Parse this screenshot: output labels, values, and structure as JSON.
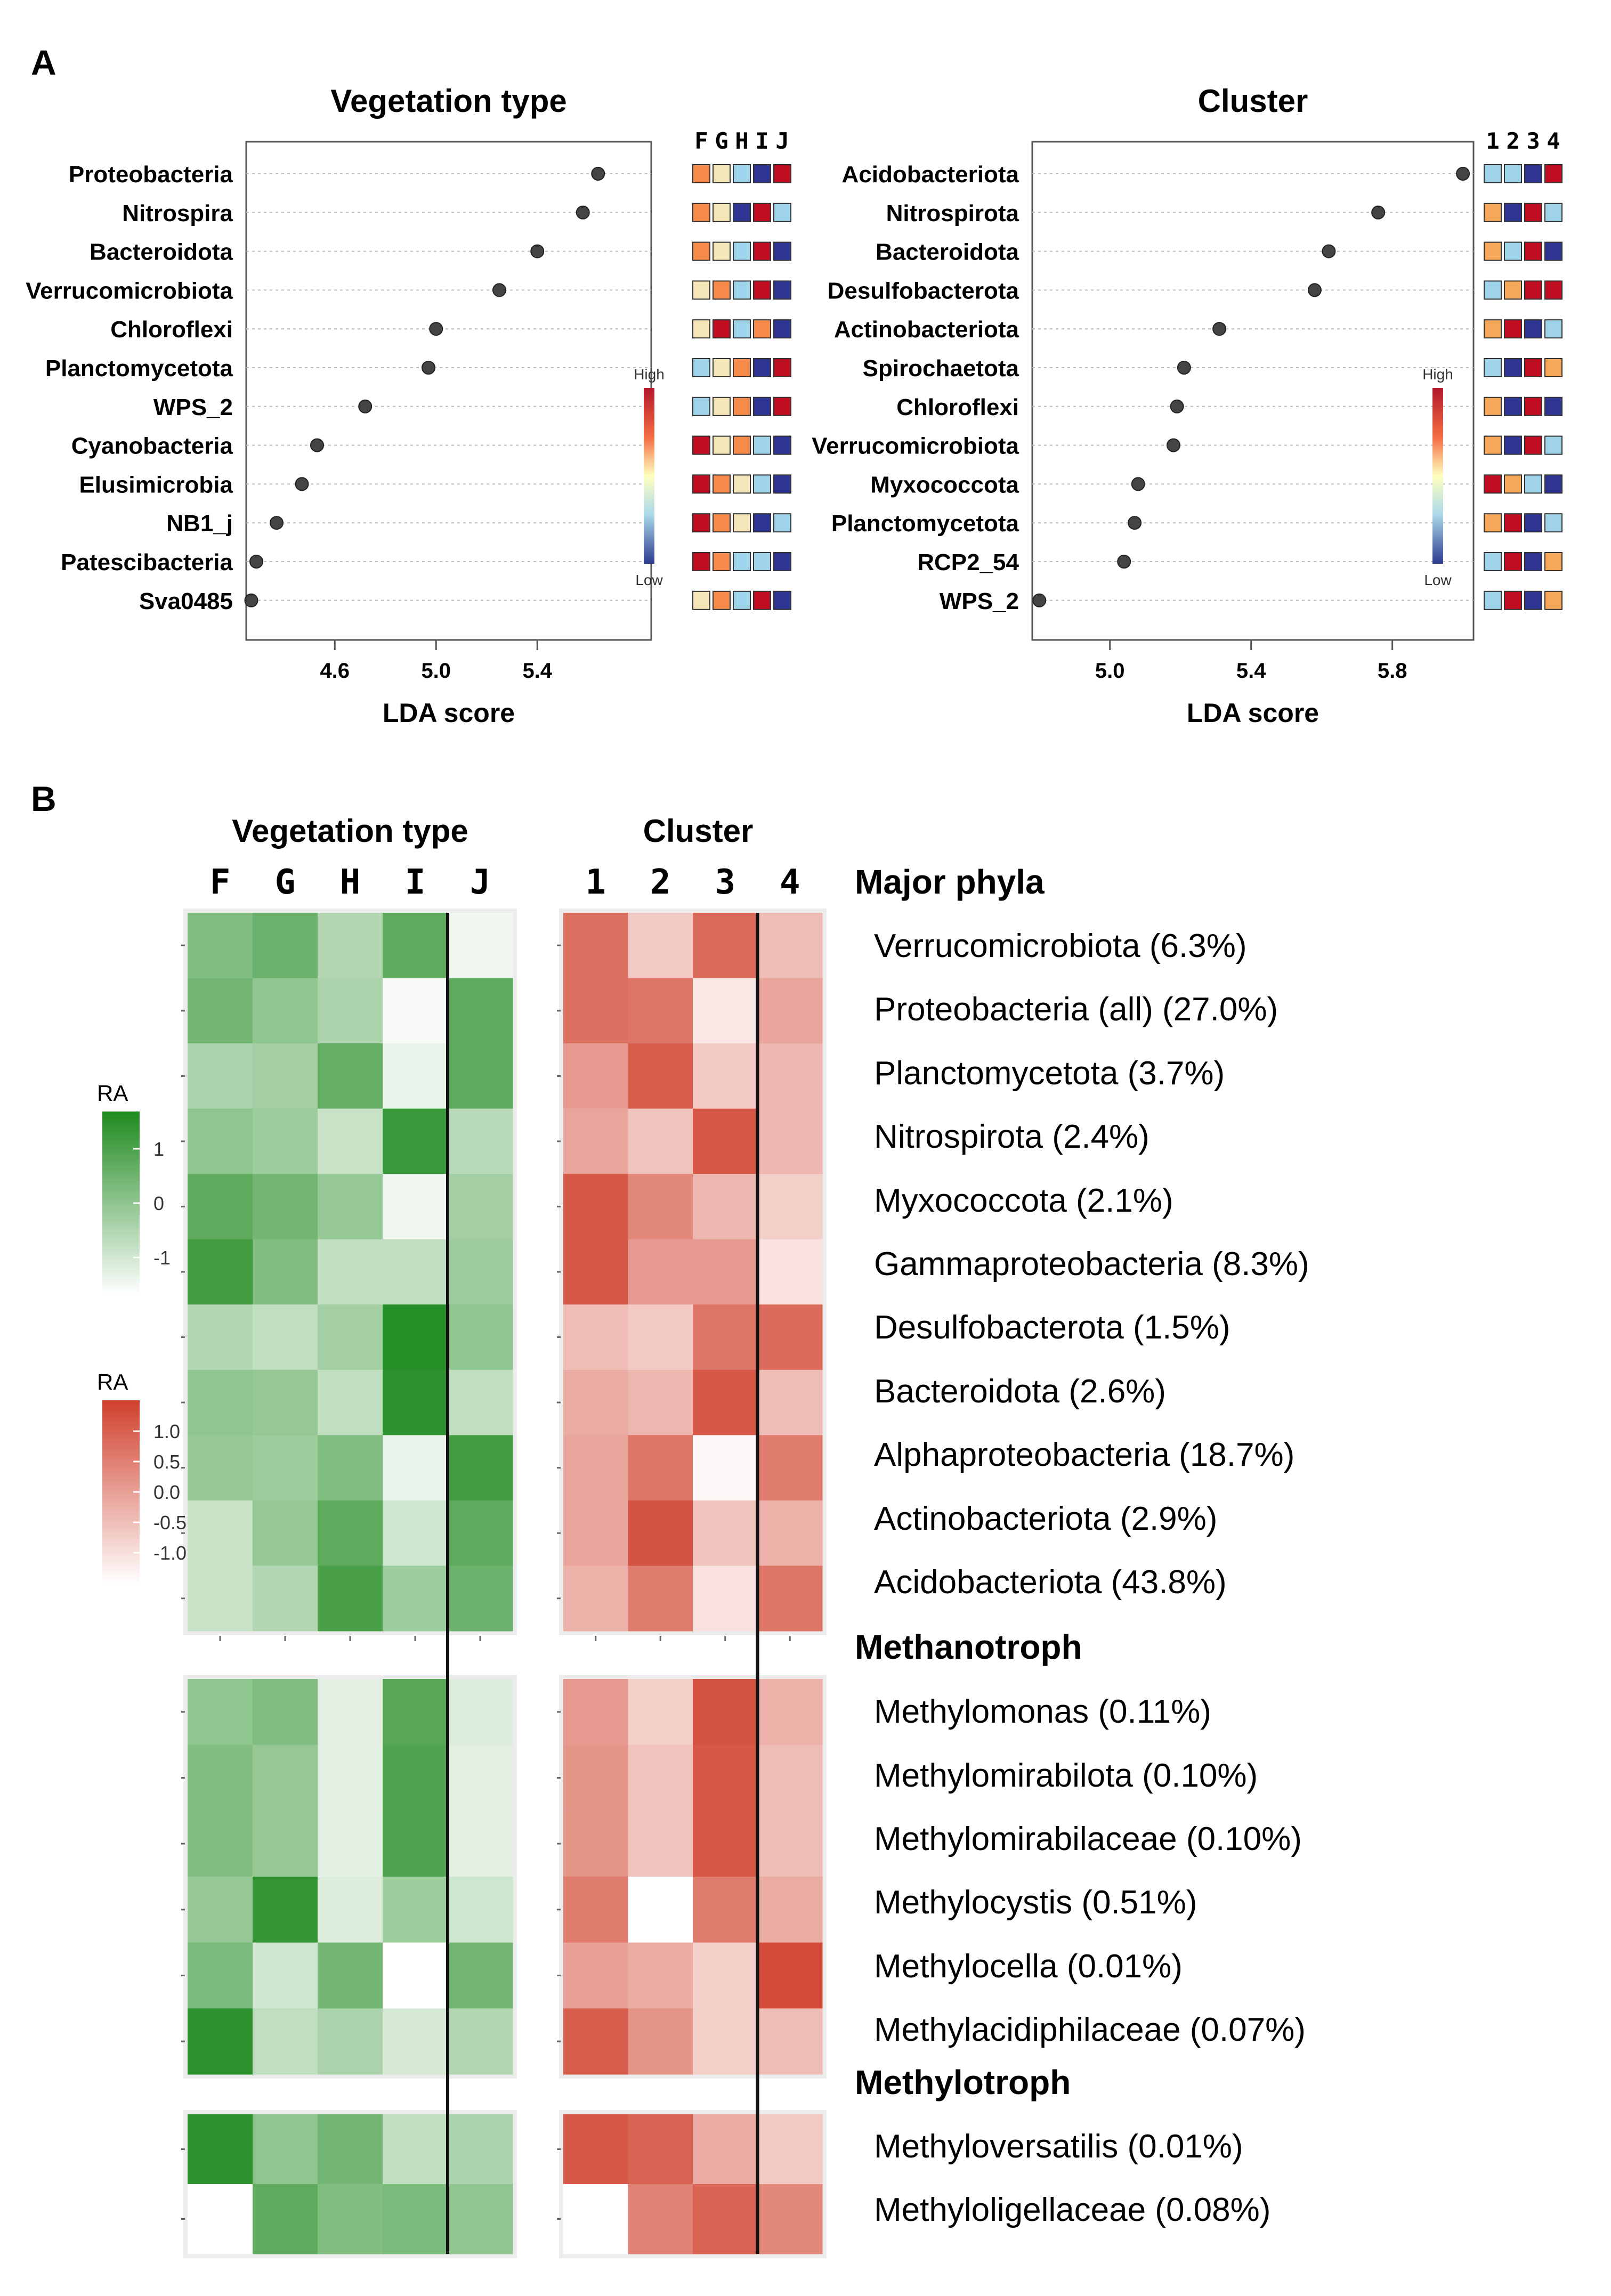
{
  "panels": {
    "a": "A",
    "b": "B"
  },
  "lda_labels": {
    "high": "High",
    "low": "Low",
    "xlabel": "LDA score"
  },
  "chart_data": [
    {
      "id": "lda_vegetation",
      "type": "scatter",
      "title": "Vegetation type",
      "xlabel": "LDA score",
      "xlim": [
        4.25,
        5.85
      ],
      "xticks": [
        4.6,
        5.0,
        5.4
      ],
      "xticklabels": [
        "4.6",
        "5.0",
        "5.4"
      ],
      "group_labels": [
        "F",
        "G",
        "H",
        "I",
        "J"
      ],
      "items": [
        {
          "label": "Proteobacteria",
          "value": 5.64,
          "colors": [
            "#f58a4a",
            "#f5e6ba",
            "#9fd3ea",
            "#2e3592",
            "#c10d22"
          ]
        },
        {
          "label": "Nitrospira",
          "value": 5.58,
          "colors": [
            "#f58a4a",
            "#f5e6ba",
            "#2e3592",
            "#c10d22",
            "#9fd3ea"
          ]
        },
        {
          "label": "Bacteroidota",
          "value": 5.4,
          "colors": [
            "#f58a4a",
            "#f5e6ba",
            "#9fd3ea",
            "#c10d22",
            "#2e3592"
          ]
        },
        {
          "label": "Verrucomicrobiota",
          "value": 5.25,
          "colors": [
            "#f5e6ba",
            "#f58a4a",
            "#9fd3ea",
            "#c10d22",
            "#2e3592"
          ]
        },
        {
          "label": "Chloroflexi",
          "value": 5.0,
          "colors": [
            "#f5e6ba",
            "#c10d22",
            "#9fd3ea",
            "#f58a4a",
            "#2e3592"
          ]
        },
        {
          "label": "Planctomycetota",
          "value": 4.97,
          "colors": [
            "#9fd3ea",
            "#f5e6ba",
            "#f58a4a",
            "#2e3592",
            "#c10d22"
          ]
        },
        {
          "label": "WPS_2",
          "value": 4.72,
          "colors": [
            "#9fd3ea",
            "#f5e6ba",
            "#f58a4a",
            "#2e3592",
            "#c10d22"
          ]
        },
        {
          "label": "Cyanobacteria",
          "value": 4.53,
          "colors": [
            "#c10d22",
            "#f5e6ba",
            "#f58a4a",
            "#9fd3ea",
            "#2e3592"
          ]
        },
        {
          "label": "Elusimicrobia",
          "value": 4.47,
          "colors": [
            "#c10d22",
            "#f58a4a",
            "#f5e6ba",
            "#9fd3ea",
            "#2e3592"
          ]
        },
        {
          "label": "NB1_j",
          "value": 4.37,
          "colors": [
            "#c10d22",
            "#f58a4a",
            "#f5e6ba",
            "#2e3592",
            "#9fd3ea"
          ]
        },
        {
          "label": "Patescibacteria",
          "value": 4.29,
          "colors": [
            "#c10d22",
            "#f58a4a",
            "#9fd3ea",
            "#9fd3ea",
            "#2e3592"
          ]
        },
        {
          "label": "Sva0485",
          "value": 4.27,
          "colors": [
            "#f5e6ba",
            "#f58a4a",
            "#9fd3ea",
            "#c10d22",
            "#2e3592"
          ]
        }
      ]
    },
    {
      "id": "lda_cluster",
      "type": "scatter",
      "title": "Cluster",
      "xlabel": "LDA score",
      "xlim": [
        4.78,
        6.03
      ],
      "xticks": [
        5.0,
        5.4,
        5.8
      ],
      "xticklabels": [
        "5.0",
        "5.4",
        "5.8"
      ],
      "group_labels": [
        "1",
        "2",
        "3",
        "4"
      ],
      "items": [
        {
          "label": "Acidobacteriota",
          "value": 6.0,
          "colors": [
            "#9fd3ea",
            "#9fd3ea",
            "#2e3592",
            "#c10d22"
          ]
        },
        {
          "label": "Nitrospirota",
          "value": 5.76,
          "colors": [
            "#f5a85a",
            "#2e3592",
            "#c10d22",
            "#9fd3ea"
          ]
        },
        {
          "label": "Bacteroidota",
          "value": 5.62,
          "colors": [
            "#f5a85a",
            "#9fd3ea",
            "#c10d22",
            "#2e3592"
          ]
        },
        {
          "label": "Desulfobacterota",
          "value": 5.58,
          "colors": [
            "#9fd3ea",
            "#f5a85a",
            "#c10d22",
            "#c10d22"
          ]
        },
        {
          "label": "Actinobacteriota",
          "value": 5.31,
          "colors": [
            "#f5a85a",
            "#c10d22",
            "#2e3592",
            "#9fd3ea"
          ]
        },
        {
          "label": "Spirochaetota",
          "value": 5.21,
          "colors": [
            "#9fd3ea",
            "#2e3592",
            "#c10d22",
            "#f5a85a"
          ]
        },
        {
          "label": "Chloroflexi",
          "value": 5.19,
          "colors": [
            "#f5a85a",
            "#2e3592",
            "#c10d22",
            "#2e3592"
          ]
        },
        {
          "label": "Verrucomicrobiota",
          "value": 5.18,
          "colors": [
            "#f5a85a",
            "#2e3592",
            "#c10d22",
            "#9fd3ea"
          ]
        },
        {
          "label": "Myxococcota",
          "value": 5.08,
          "colors": [
            "#c10d22",
            "#f5a85a",
            "#9fd3ea",
            "#2e3592"
          ]
        },
        {
          "label": "Planctomycetota",
          "value": 5.07,
          "colors": [
            "#f5a85a",
            "#c10d22",
            "#2e3592",
            "#9fd3ea"
          ]
        },
        {
          "label": "RCP2_54",
          "value": 5.04,
          "colors": [
            "#9fd3ea",
            "#c10d22",
            "#2e3592",
            "#f5a85a"
          ]
        },
        {
          "label": "WPS_2",
          "value": 4.8,
          "colors": [
            "#9fd3ea",
            "#c10d22",
            "#2e3592",
            "#f5a85a"
          ]
        }
      ]
    },
    {
      "id": "heatmap_vegetation",
      "type": "heatmap",
      "title": "Vegetation type",
      "columns": [
        "F",
        "G",
        "H",
        "I",
        "J"
      ],
      "legend": {
        "title": "RA",
        "ticks": [
          "1",
          "0",
          "-1"
        ],
        "tick_values": [
          1,
          0,
          -1
        ]
      },
      "blocks": [
        {
          "rows": [
            [
              0.1,
              0.4,
              -0.6,
              0.6,
              -1.5
            ],
            [
              0.3,
              -0.1,
              -0.5,
              -1.6,
              0.6
            ],
            [
              -0.5,
              -0.4,
              0.5,
              -1.4,
              0.6
            ],
            [
              -0.1,
              -0.3,
              -0.9,
              1.1,
              -0.7
            ],
            [
              0.6,
              0.3,
              -0.2,
              -1.5,
              -0.4
            ],
            [
              1.0,
              0.1,
              -0.8,
              -0.8,
              -0.3
            ],
            [
              -0.6,
              -0.8,
              -0.4,
              1.4,
              -0.1
            ],
            [
              -0.1,
              -0.2,
              -0.8,
              1.3,
              -0.8
            ],
            [
              -0.2,
              -0.3,
              0.1,
              -1.4,
              1.0
            ],
            [
              -0.9,
              -0.2,
              0.6,
              -1.0,
              0.6
            ],
            [
              -0.9,
              -0.6,
              0.9,
              -0.3,
              0.4
            ]
          ]
        },
        {
          "rows": [
            [
              -0.1,
              0.1,
              -1.3,
              0.7,
              -1.2
            ],
            [
              0.1,
              -0.2,
              -1.3,
              0.8,
              -1.3
            ],
            [
              0.1,
              -0.2,
              -1.3,
              0.8,
              -1.3
            ],
            [
              -0.2,
              1.2,
              -1.2,
              -0.3,
              -1.0
            ],
            [
              0.2,
              -1.0,
              0.3,
              -1.7,
              0.3
            ],
            [
              1.3,
              -0.8,
              -0.5,
              -1.1,
              -0.6
            ]
          ]
        },
        {
          "rows": [
            [
              1.3,
              -0.1,
              0.3,
              -0.8,
              -0.5
            ],
            [
              -1.7,
              0.6,
              0.1,
              0.2,
              -0.1
            ]
          ]
        }
      ]
    },
    {
      "id": "heatmap_cluster",
      "type": "heatmap",
      "title": "Cluster",
      "columns": [
        "1",
        "2",
        "3",
        "4"
      ],
      "legend": {
        "title": "RA",
        "ticks": [
          "1.0",
          "0.5",
          "0.0",
          "-0.5",
          "-1.0"
        ],
        "tick_values": [
          1.0,
          0.5,
          0.0,
          -0.5,
          -1.0
        ]
      },
      "blocks": [
        {
          "rows": [
            [
              0.7,
              -0.8,
              0.8,
              -0.6
            ],
            [
              0.7,
              0.6,
              -1.3,
              -0.2
            ],
            [
              0.0,
              1.0,
              -0.8,
              -0.5
            ],
            [
              -0.2,
              -0.7,
              1.1,
              -0.5
            ],
            [
              1.1,
              0.3,
              -0.5,
              -0.9
            ],
            [
              1.1,
              0.0,
              0.0,
              -1.2
            ],
            [
              -0.6,
              -0.8,
              0.6,
              0.8
            ],
            [
              -0.3,
              -0.5,
              1.1,
              -0.6
            ],
            [
              -0.2,
              0.6,
              -1.6,
              0.5
            ],
            [
              -0.2,
              1.2,
              -0.7,
              -0.4
            ],
            [
              -0.4,
              0.5,
              -1.2,
              0.6
            ]
          ]
        },
        {
          "rows": [
            [
              0.0,
              -0.9,
              1.2,
              -0.4
            ],
            [
              0.1,
              -0.7,
              1.1,
              -0.6
            ],
            [
              0.1,
              -0.7,
              1.1,
              -0.6
            ],
            [
              0.5,
              -1.7,
              0.5,
              -0.3
            ],
            [
              -0.1,
              -0.3,
              -0.9,
              1.3
            ],
            [
              1.0,
              0.1,
              -0.9,
              -0.6
            ]
          ]
        },
        {
          "rows": [
            [
              1.1,
              0.9,
              -0.3,
              -0.8
            ],
            [
              -1.7,
              0.4,
              0.9,
              0.3
            ]
          ]
        }
      ]
    }
  ],
  "heatmap_labels": {
    "groups": [
      {
        "header": "Major phyla",
        "rows": [
          "Verrucomicrobiota (6.3%)",
          "Proteobacteria (all) (27.0%)",
          "Planctomycetota (3.7%)",
          "Nitrospirota (2.4%)",
          "Myxococcota (2.1%)",
          "Gammaproteobacteria (8.3%)",
          "Desulfobacterota (1.5%)",
          "Bacteroidota (2.6%)",
          "Alphaproteobacteria (18.7%)",
          "Actinobacteriota (2.9%)",
          "Acidobacteriota (43.8%)"
        ]
      },
      {
        "header": "Methanotroph",
        "rows": [
          "Methylomonas (0.11%)",
          "Methylomirabilota (0.10%)",
          "Methylomirabilaceae (0.10%)",
          "Methylocystis (0.51%)",
          "Methylocella (0.01%)",
          "Methylacidiphilaceae (0.07%)"
        ]
      },
      {
        "header": "Methylotroph",
        "rows": [
          "Methyloversatilis (0.01%)",
          "Methyloligellaceae (0.08%)"
        ]
      }
    ]
  },
  "colors": {
    "dot": "#444444",
    "grid": "#bdbdbd",
    "green_high": "#1f8a1f",
    "green_low": "#ffffff",
    "red_high": "#d0402c",
    "red_low": "#ffffff",
    "frame": "#ececec"
  }
}
